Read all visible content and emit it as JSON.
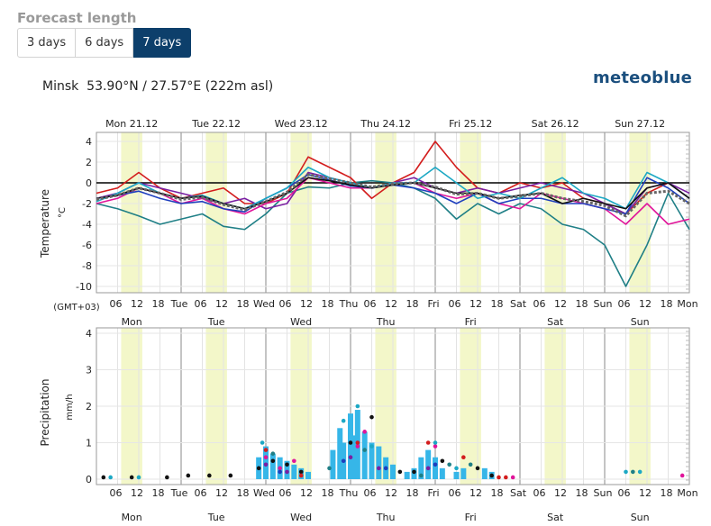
{
  "header": {
    "title": "Forecast length"
  },
  "tabs": [
    {
      "label": "3 days",
      "active": false
    },
    {
      "label": "6 days",
      "active": false
    },
    {
      "label": "7 days",
      "active": true
    }
  ],
  "location": {
    "name": "Minsk",
    "coords": "53.90°N / 27.57°E (222m asl)"
  },
  "brand": "meteoblue",
  "timezone_label": "(GMT+03)",
  "colors": {
    "accent": "#0d3f6b",
    "day_band": "#f3f7c9",
    "brand": "#1b4f7e"
  },
  "chart_data": [
    {
      "type": "line",
      "ylabel": "Temperature",
      "yunit": "°C",
      "ylim": [
        -10,
        4.5
      ],
      "yticks": [
        4,
        2,
        0,
        -2,
        -4,
        -6,
        -8,
        -10
      ],
      "day_labels": [
        "Mon 21.12",
        "Tue 22.12",
        "Wed 23.12",
        "Thu 24.12",
        "Fri 25.12",
        "Sat 26.12",
        "Sun 27.12"
      ],
      "bottom_day_labels": [
        "Mon",
        "Tue",
        "Wed",
        "Thu",
        "Fri",
        "Sat",
        "Sun"
      ],
      "x_tick_labels": [
        "06",
        "12",
        "18",
        "Tue",
        "06",
        "12",
        "18",
        "Wed",
        "06",
        "12",
        "18",
        "Thu",
        "06",
        "12",
        "18",
        "Fri",
        "06",
        "12",
        "18",
        "Sat",
        "06",
        "12",
        "18",
        "Sun",
        "06",
        "12",
        "18",
        "Mon"
      ],
      "x_hours_range": [
        0,
        168
      ],
      "grid": true,
      "series": [
        {
          "color": "#1f7f86",
          "x": [
            0,
            6,
            12,
            18,
            24,
            30,
            36,
            42,
            48,
            54,
            60,
            66,
            72,
            78,
            84,
            90,
            96,
            102,
            108,
            114,
            120,
            126,
            132,
            138,
            144,
            150,
            156,
            162,
            168
          ],
          "values": [
            -2,
            -2.5,
            -3.2,
            -4,
            -3.5,
            -3,
            -4.2,
            -4.5,
            -3,
            -1,
            -0.4,
            -0.5,
            0,
            0.2,
            0,
            -0.5,
            -1.5,
            -3.5,
            -2,
            -3,
            -2,
            -2.5,
            -4,
            -4.5,
            -6,
            -10,
            -6,
            -1,
            -4.5
          ]
        },
        {
          "color": "#d31d1d",
          "x": [
            0,
            6,
            12,
            18,
            24,
            30,
            36,
            42,
            48,
            54,
            60,
            66,
            72,
            78,
            84,
            90,
            96,
            102,
            108,
            114,
            120,
            126,
            132,
            138,
            144,
            150,
            156,
            162,
            168
          ],
          "values": [
            -1,
            -0.5,
            1,
            -0.5,
            -1.5,
            -1,
            -0.5,
            -2,
            -2,
            -1,
            2.5,
            1.5,
            0.5,
            -1.5,
            0,
            1,
            4,
            1.5,
            -0.5,
            -1,
            0,
            -0.5,
            0,
            -1.5,
            -2,
            -3,
            -1,
            0,
            -1.5
          ]
        },
        {
          "color": "#7a1fa2",
          "x": [
            0,
            6,
            12,
            18,
            24,
            30,
            36,
            42,
            48,
            54,
            60,
            66,
            72,
            78,
            84,
            90,
            96,
            102,
            108,
            114,
            120,
            126,
            132,
            138,
            144,
            150,
            156,
            162,
            168
          ],
          "values": [
            -1.5,
            -1,
            0,
            -0.5,
            -1,
            -1.5,
            -2,
            -1.5,
            -2.5,
            -2,
            1,
            0.5,
            0,
            -0.5,
            0,
            0.5,
            -0.5,
            -1,
            -0.5,
            -1,
            -0.5,
            0,
            -0.5,
            -1,
            -2,
            -3,
            -0.5,
            0,
            -1
          ]
        },
        {
          "color": "#e0159a",
          "x": [
            0,
            6,
            12,
            18,
            24,
            30,
            36,
            42,
            48,
            54,
            60,
            66,
            72,
            78,
            84,
            90,
            96,
            102,
            108,
            114,
            120,
            126,
            132,
            138,
            144,
            150,
            156,
            162,
            168
          ],
          "values": [
            -2,
            -1.5,
            -0.5,
            -1,
            -2,
            -1.5,
            -2.5,
            -3,
            -2,
            -1.5,
            0.5,
            0,
            -0.5,
            -0.5,
            0,
            0,
            -1,
            -1.5,
            -1,
            -2,
            -2.5,
            -1,
            -1.5,
            -2,
            -2.5,
            -4,
            -2,
            -4,
            -3.5
          ]
        },
        {
          "color": "#1e3fbe",
          "x": [
            0,
            6,
            12,
            18,
            24,
            30,
            36,
            42,
            48,
            54,
            60,
            66,
            72,
            78,
            84,
            90,
            96,
            102,
            108,
            114,
            120,
            126,
            132,
            138,
            144,
            150,
            156,
            162,
            168
          ],
          "values": [
            -1.5,
            -1.2,
            -0.8,
            -1.5,
            -2,
            -1.8,
            -2.5,
            -2.8,
            -1.5,
            -0.5,
            0.8,
            0.3,
            -0.3,
            -0.5,
            -0.2,
            -0.5,
            -1,
            -2,
            -1,
            -2,
            -1.5,
            -1.5,
            -2,
            -2,
            -2.5,
            -3,
            0.5,
            -0.5,
            -2
          ]
        },
        {
          "color": "#1ca8c4",
          "x": [
            0,
            6,
            12,
            18,
            24,
            30,
            36,
            42,
            48,
            54,
            60,
            66,
            72,
            78,
            84,
            90,
            96,
            102,
            108,
            114,
            120,
            126,
            132,
            138,
            144,
            150,
            156,
            162,
            168
          ],
          "values": [
            -1.8,
            -1,
            0,
            -1,
            -1.5,
            -1.2,
            -2,
            -2.5,
            -1.5,
            -0.5,
            1.5,
            0.5,
            0,
            -0.5,
            0,
            0,
            1.5,
            0,
            -1.5,
            -1,
            -1.5,
            -0.5,
            0.5,
            -1,
            -1.5,
            -2.5,
            1,
            0,
            -1.5
          ]
        },
        {
          "color": "#111111",
          "x": [
            0,
            6,
            12,
            18,
            24,
            30,
            36,
            42,
            48,
            54,
            60,
            66,
            72,
            78,
            84,
            90,
            96,
            102,
            108,
            114,
            120,
            126,
            132,
            138,
            144,
            150,
            156,
            162,
            168
          ],
          "values": [
            -1.5,
            -1.2,
            -0.5,
            -1,
            -1.5,
            -1.3,
            -2,
            -2.5,
            -1.8,
            -1,
            0.5,
            0.2,
            -0.2,
            -0.5,
            -0.2,
            0,
            -0.5,
            -1,
            -1,
            -1.5,
            -1.2,
            -1,
            -2,
            -1.5,
            -2,
            -2.5,
            -0.5,
            0,
            -1.5
          ]
        },
        {
          "color": "#666666",
          "dashed": true,
          "x": [
            0,
            6,
            12,
            18,
            24,
            30,
            36,
            42,
            48,
            54,
            60,
            66,
            72,
            78,
            84,
            90,
            96,
            102,
            108,
            114,
            120,
            126,
            132,
            138,
            144,
            150,
            156,
            162,
            168
          ],
          "values": [
            -1.6,
            -1.2,
            -0.5,
            -1,
            -1.6,
            -1.4,
            -2.1,
            -2.6,
            -1.8,
            -0.9,
            0.8,
            0.4,
            0,
            -0.4,
            -0.1,
            0,
            -0.4,
            -1.1,
            -1,
            -1.5,
            -1.3,
            -1,
            -1.5,
            -1.8,
            -2.2,
            -3.2,
            -1,
            -0.8,
            -2
          ]
        }
      ]
    },
    {
      "type": "bar",
      "ylabel": "Precipitation",
      "yunit": "mm/h",
      "ylim": [
        0,
        4
      ],
      "yticks": [
        4,
        3,
        2,
        1,
        0
      ],
      "x_hours_range": [
        0,
        168
      ],
      "day_labels": [
        "Mon",
        "Tue",
        "Wed",
        "Thu",
        "Fri",
        "Sat",
        "Sun"
      ],
      "x_tick_labels": [
        "06",
        "12",
        "18",
        "Tue",
        "06",
        "12",
        "18",
        "Wed",
        "06",
        "12",
        "18",
        "Thu",
        "06",
        "12",
        "18",
        "Fri",
        "06",
        "12",
        "18",
        "Sat",
        "06",
        "12",
        "18",
        "Sun",
        "06",
        "12",
        "18",
        "Mon"
      ],
      "grid": true,
      "bars": [
        {
          "x": 46,
          "value": 0.6
        },
        {
          "x": 48,
          "value": 0.9
        },
        {
          "x": 50,
          "value": 0.7
        },
        {
          "x": 52,
          "value": 0.6
        },
        {
          "x": 54,
          "value": 0.5
        },
        {
          "x": 56,
          "value": 0.4
        },
        {
          "x": 58,
          "value": 0.3
        },
        {
          "x": 60,
          "value": 0.2
        },
        {
          "x": 67,
          "value": 0.8
        },
        {
          "x": 69,
          "value": 1.4
        },
        {
          "x": 70,
          "value": 1.0
        },
        {
          "x": 72,
          "value": 1.8
        },
        {
          "x": 73,
          "value": 1.2
        },
        {
          "x": 74,
          "value": 1.9
        },
        {
          "x": 76,
          "value": 1.3
        },
        {
          "x": 78,
          "value": 1.0
        },
        {
          "x": 80,
          "value": 0.9
        },
        {
          "x": 82,
          "value": 0.6
        },
        {
          "x": 84,
          "value": 0.4
        },
        {
          "x": 88,
          "value": 0.2
        },
        {
          "x": 90,
          "value": 0.3
        },
        {
          "x": 92,
          "value": 0.6
        },
        {
          "x": 94,
          "value": 0.8
        },
        {
          "x": 96,
          "value": 0.6
        },
        {
          "x": 98,
          "value": 0.3
        },
        {
          "x": 102,
          "value": 0.2
        },
        {
          "x": 104,
          "value": 0.3
        },
        {
          "x": 110,
          "value": 0.3
        },
        {
          "x": 112,
          "value": 0.2
        }
      ],
      "point_series": [
        {
          "color": "#111111",
          "points": [
            [
              2,
              0.05
            ],
            [
              10,
              0.05
            ],
            [
              20,
              0.05
            ],
            [
              26,
              0.1
            ],
            [
              32,
              0.1
            ],
            [
              38,
              0.1
            ],
            [
              46,
              0.3
            ],
            [
              50,
              0.5
            ],
            [
              54,
              0.4
            ],
            [
              58,
              0.2
            ],
            [
              72,
              1.0
            ],
            [
              78,
              1.7
            ],
            [
              86,
              0.2
            ],
            [
              90,
              0.2
            ],
            [
              98,
              0.5
            ],
            [
              108,
              0.3
            ],
            [
              112,
              0.1
            ]
          ]
        },
        {
          "color": "#e0159a",
          "points": [
            [
              48,
              0.6
            ],
            [
              52,
              0.3
            ],
            [
              56,
              0.5
            ],
            [
              74,
              0.9
            ],
            [
              76,
              1.3
            ],
            [
              96,
              0.9
            ],
            [
              118,
              0.05
            ],
            [
              166,
              0.1
            ]
          ]
        },
        {
          "color": "#1ca8c4",
          "points": [
            [
              4,
              0.05
            ],
            [
              12,
              0.05
            ],
            [
              47,
              1.0
            ],
            [
              70,
              1.6
            ],
            [
              74,
              2.0
            ],
            [
              78,
              0.9
            ],
            [
              96,
              1.0
            ],
            [
              102,
              0.3
            ],
            [
              150,
              0.2
            ],
            [
              154,
              0.2
            ]
          ]
        },
        {
          "color": "#1f7f86",
          "points": [
            [
              50,
              0.7
            ],
            [
              66,
              0.3
            ],
            [
              76,
              0.8
            ],
            [
              92,
              0.1
            ],
            [
              100,
              0.4
            ],
            [
              106,
              0.4
            ],
            [
              152,
              0.2
            ]
          ]
        },
        {
          "color": "#7a1fa2",
          "points": [
            [
              48,
              0.4
            ],
            [
              54,
              0.2
            ],
            [
              72,
              0.6
            ],
            [
              80,
              0.3
            ],
            [
              94,
              0.3
            ]
          ]
        },
        {
          "color": "#d31d1d",
          "points": [
            [
              48,
              0.8
            ],
            [
              58,
              0.1
            ],
            [
              74,
              1.0
            ],
            [
              94,
              1.0
            ],
            [
              104,
              0.6
            ],
            [
              114,
              0.05
            ],
            [
              116,
              0.05
            ]
          ]
        },
        {
          "color": "#1e3fbe",
          "points": [
            [
              52,
              0.2
            ],
            [
              70,
              0.5
            ],
            [
              82,
              0.3
            ],
            [
              96,
              0.4
            ]
          ]
        }
      ]
    }
  ]
}
